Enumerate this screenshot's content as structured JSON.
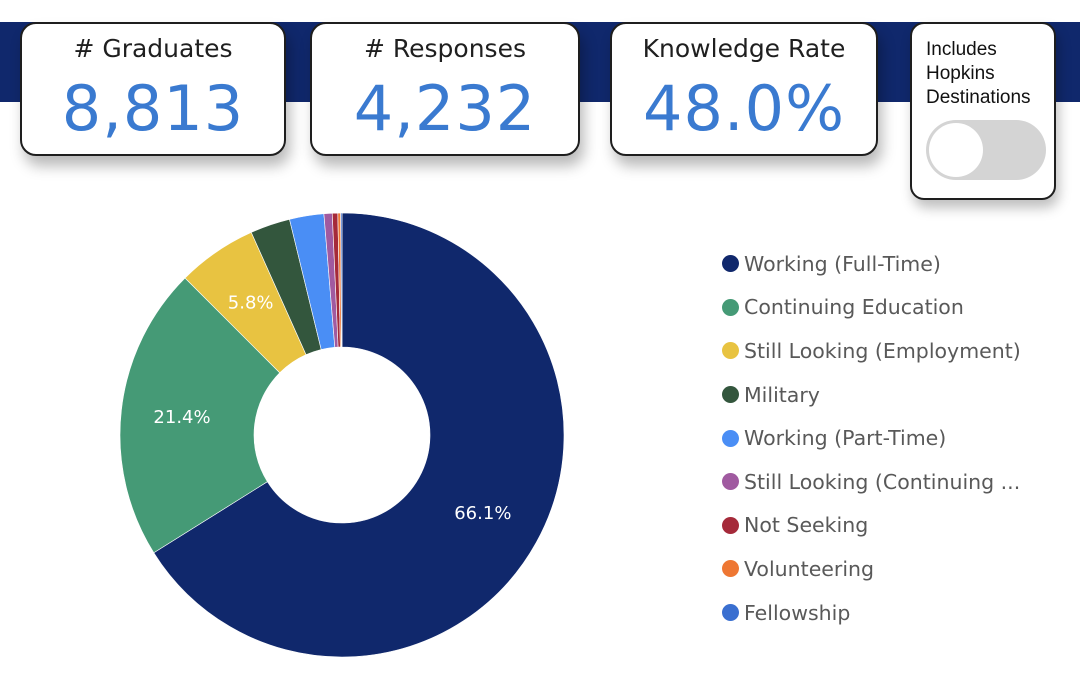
{
  "kpis": [
    {
      "label": "# Graduates",
      "value": "8,813"
    },
    {
      "label": "# Responses",
      "value": "4,232"
    },
    {
      "label": "Knowledge Rate",
      "value": "48.0%"
    }
  ],
  "toggle": {
    "label": "Includes Hopkins Destinations",
    "state": "off"
  },
  "colors": {
    "band": "#10286c",
    "kpi_value": "#3a7ad0"
  },
  "chart_data": {
    "type": "pie",
    "donut": true,
    "slice_order": "clockwise-from-top",
    "legend_position": "right",
    "labels": [
      "Working (Full-Time)",
      "Continuing Education",
      "Still Looking (Employment)",
      "Military",
      "Working (Part-Time)",
      "Still Looking (Continuing ...",
      "Not Seeking",
      "Volunteering",
      "Fellowship"
    ],
    "values": [
      66.1,
      21.4,
      5.8,
      2.9,
      2.5,
      0.6,
      0.4,
      0.2,
      0.1
    ],
    "data_labels": [
      "66.1%",
      "21.4%",
      "5.8%",
      "",
      "",
      "",
      "",
      "",
      ""
    ],
    "colors": [
      "#10286c",
      "#459a76",
      "#e8c341",
      "#33563d",
      "#4a8ef5",
      "#a05aa0",
      "#a52a3a",
      "#ee7733",
      "#3a6fd0"
    ]
  }
}
